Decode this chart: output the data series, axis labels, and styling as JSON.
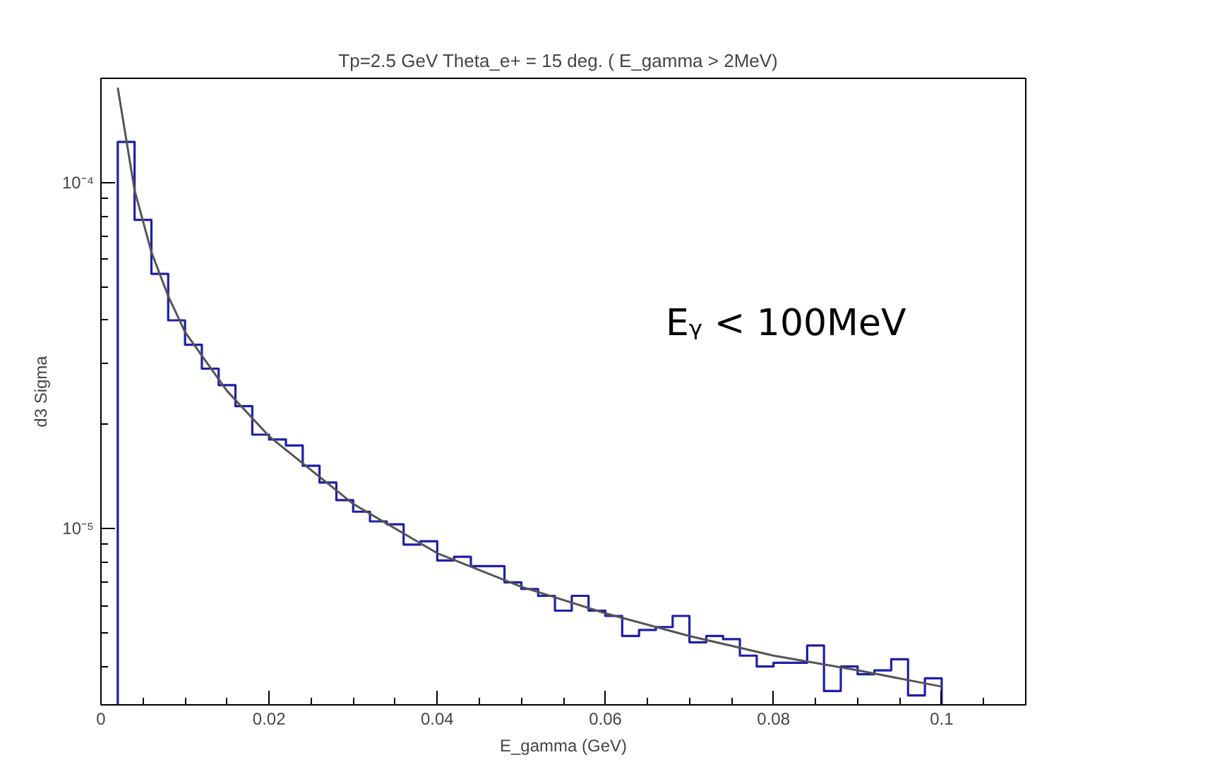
{
  "chart_data": {
    "type": "histogram",
    "title": "Tp=2.5 GeV  Theta_e+ = 15 deg.  ( E_gamma > 2MeV)",
    "xlabel": "E_gamma (GeV)",
    "ylabel": "d3 Sigma",
    "bins": [
      0.002,
      0.004,
      0.006,
      0.008,
      0.01,
      0.012,
      0.014,
      0.016,
      0.018,
      0.02,
      0.022,
      0.024,
      0.026,
      0.028,
      0.03,
      0.032,
      0.034,
      0.036,
      0.038,
      0.04,
      0.042,
      0.044,
      0.046,
      0.048,
      0.05,
      0.052,
      0.054,
      0.056,
      0.058,
      0.06,
      0.062,
      0.064,
      0.066,
      0.068,
      0.07,
      0.072,
      0.074,
      0.076,
      0.078,
      0.08,
      0.082,
      0.084,
      0.086,
      0.088,
      0.09,
      0.092,
      0.094,
      0.096,
      0.098,
      0.1
    ],
    "values": [
      0.000131,
      7.8e-05,
      5.45e-05,
      4e-05,
      3.4e-05,
      2.9e-05,
      2.6e-05,
      2.26e-05,
      1.87e-05,
      1.81e-05,
      1.74e-05,
      1.52e-05,
      1.36e-05,
      1.21e-05,
      1.12e-05,
      1.05e-05,
      1.03e-05,
      9e-06,
      9.2e-06,
      8.1e-06,
      8.3e-06,
      7.8e-06,
      7.8e-06,
      7e-06,
      6.7e-06,
      6.4e-06,
      5.8e-06,
      6.4e-06,
      5.8e-06,
      5.6e-06,
      4.9e-06,
      5.1e-06,
      5.2e-06,
      5.6e-06,
      4.7e-06,
      4.9e-06,
      4.8e-06,
      4.3e-06,
      4e-06,
      4.1e-06,
      4.1e-06,
      4.6e-06,
      3.4e-06,
      4e-06,
      3.8e-06,
      3.9e-06,
      4.2e-06,
      3.3e-06,
      3.7e-06
    ],
    "color": "#1f1fa8",
    "series": [
      {
        "type": "line",
        "color": "#555555",
        "x": [
          0.002,
          0.004,
          0.006,
          0.008,
          0.01,
          0.015,
          0.02,
          0.03,
          0.04,
          0.05,
          0.06,
          0.07,
          0.08,
          0.09,
          0.1
        ],
        "values": [
          0.000188,
          9.5e-05,
          6.3e-05,
          4.7e-05,
          3.7e-05,
          2.5e-05,
          1.85e-05,
          1.18e-05,
          8.5e-06,
          6.8e-06,
          5.7e-06,
          4.9e-06,
          4.3e-06,
          3.9e-06,
          3.5e-06
        ]
      }
    ],
    "log": "y",
    "grid": false,
    "xlim": [
      0,
      0.11
    ],
    "xticks": [
      0,
      {
        "value": 0.005,
        "label": null
      },
      {
        "value": 0.01,
        "label": null
      },
      {
        "value": 0.015,
        "label": null
      },
      0.02,
      {
        "value": 0.025,
        "label": null
      },
      {
        "value": 0.03,
        "label": null
      },
      {
        "value": 0.035,
        "label": null
      },
      0.04,
      {
        "value": 0.045,
        "label": null
      },
      {
        "value": 0.05,
        "label": null
      },
      {
        "value": 0.055,
        "label": null
      },
      0.06,
      {
        "value": 0.065,
        "label": null
      },
      {
        "value": 0.07,
        "label": null
      },
      {
        "value": 0.075,
        "label": null
      },
      0.08,
      {
        "value": 0.085,
        "label": null
      },
      {
        "value": 0.09,
        "label": null
      },
      {
        "value": 0.095,
        "label": null
      },
      0.1,
      {
        "value": 0.105,
        "label": null
      }
    ],
    "ylim": [
      3.1e-06,
      0.0002
    ],
    "yticks": [
      {
        "value": 4e-06,
        "label": null
      },
      {
        "value": 5e-06,
        "label": null
      },
      {
        "value": 6e-06,
        "label": null
      },
      {
        "value": 7e-06,
        "label": null
      },
      {
        "value": 8e-06,
        "label": null
      },
      {
        "value": 9e-06,
        "label": null
      },
      {
        "value": 1e-05,
        "label": "10⁻⁵"
      },
      {
        "value": 2e-05,
        "label": null
      },
      {
        "value": 3e-05,
        "label": null
      },
      {
        "value": 4e-05,
        "label": null
      },
      {
        "value": 5e-05,
        "label": null
      },
      {
        "value": 6e-05,
        "label": null
      },
      {
        "value": 7e-05,
        "label": null
      },
      {
        "value": 8e-05,
        "label": null
      },
      {
        "value": 9e-05,
        "label": null
      },
      {
        "value": 0.0001,
        "label": "10⁻⁴"
      },
      {
        "value": 0.0002,
        "label": null
      }
    ],
    "annotations": [
      "Eᵧ < 100MeV"
    ]
  }
}
